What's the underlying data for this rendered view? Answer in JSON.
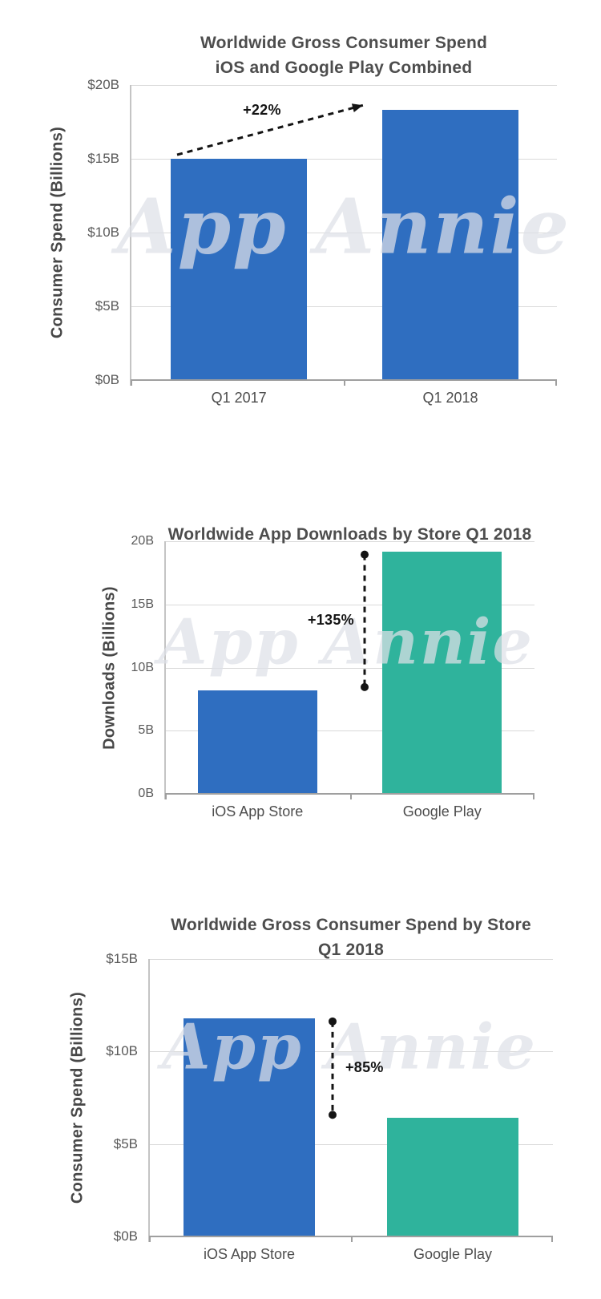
{
  "watermark": "App Annie",
  "colors": {
    "ios_blue": "#2f6ec0",
    "google_green": "#2fb39c",
    "title_text": "#4d4d4d",
    "tick_text": "#595959",
    "annotation_text": "#141414",
    "gridline": "#d9d9d9"
  },
  "chart_data": [
    {
      "type": "bar",
      "title": "Worldwide Gross Consumer Spend",
      "subtitle": "iOS and Google Play Combined",
      "ylabel": "Consumer Spend (Billions)",
      "xlabel": "",
      "categories": [
        "Q1 2017",
        "Q1 2018"
      ],
      "values": [
        15.0,
        18.3
      ],
      "bar_colors": [
        "#2f6ec0",
        "#2f6ec0"
      ],
      "ylim": [
        0,
        20
      ],
      "yticks": {
        "values": [
          20,
          15,
          10,
          5,
          0
        ],
        "labels": [
          "$20B",
          "$15B",
          "$10B",
          "$5B",
          "$0B"
        ]
      },
      "grid": true,
      "legend": "none",
      "annotation": {
        "style": "trend-arrow",
        "text": "+22%",
        "from_category": "Q1 2017",
        "to_category": "Q1 2018"
      }
    },
    {
      "type": "bar",
      "title": "Worldwide App Downloads by Store Q1 2018",
      "subtitle": "",
      "ylabel": "Downloads (Billions)",
      "xlabel": "",
      "categories": [
        "iOS App Store",
        "Google Play"
      ],
      "values": [
        8.2,
        19.2
      ],
      "bar_colors": [
        "#2f6ec0",
        "#2fb39c"
      ],
      "ylim": [
        0,
        20
      ],
      "yticks": {
        "values": [
          20,
          15,
          10,
          5,
          0
        ],
        "labels": [
          "20B",
          "15B",
          "10B",
          "5B",
          "0B"
        ]
      },
      "grid": true,
      "legend": "none",
      "annotation": {
        "style": "dumbbell",
        "text": "+135%",
        "label_side": "left",
        "from_category": "iOS App Store",
        "to_category": "Google Play"
      }
    },
    {
      "type": "bar",
      "title": "Worldwide Gross Consumer Spend by Store",
      "subtitle": "Q1 2018",
      "ylabel": "Consumer Spend (Billions)",
      "xlabel": "",
      "categories": [
        "iOS App Store",
        "Google Play"
      ],
      "values": [
        11.8,
        6.4
      ],
      "bar_colors": [
        "#2f6ec0",
        "#2fb39c"
      ],
      "ylim": [
        0,
        15
      ],
      "yticks": {
        "values": [
          15,
          10,
          5,
          0
        ],
        "labels": [
          "$15B",
          "$10B",
          "$5B",
          "$0B"
        ]
      },
      "grid": true,
      "legend": "none",
      "annotation": {
        "style": "dumbbell",
        "text": "+85%",
        "label_side": "right",
        "from_category": "iOS App Store",
        "to_category": "Google Play"
      }
    }
  ]
}
